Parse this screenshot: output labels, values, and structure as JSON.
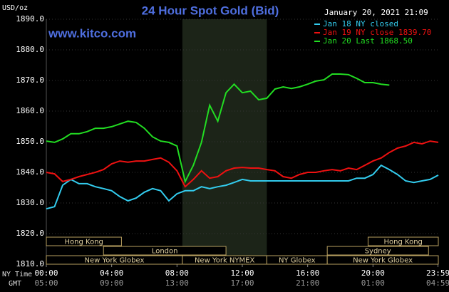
{
  "chart_data": {
    "type": "line",
    "title": "24 Hour Spot Gold (Bid)",
    "site": "www.kitco.com",
    "timestamp": "January 20, 2021 21:09",
    "y_label": "USD/oz",
    "x_label": "NY Time",
    "x2_label": "GMT",
    "x": [
      0,
      0.5,
      1,
      1.5,
      2,
      2.5,
      3,
      3.5,
      4,
      4.5,
      5,
      5.5,
      6,
      6.5,
      7,
      7.5,
      8,
      8.5,
      9,
      9.5,
      10,
      10.5,
      11,
      11.5,
      12,
      12.5,
      13,
      13.5,
      14,
      14.5,
      15,
      15.5,
      16,
      16.5,
      17,
      17.5,
      18,
      18.5,
      19,
      19.5,
      20,
      20.5,
      21,
      21.5,
      22,
      22.5,
      23,
      23.5,
      24
    ],
    "series": [
      {
        "name": "Jan 18 NY closed",
        "color": "#33ccee",
        "values": [
          1828.1,
          1828.8,
          1835.8,
          1837.7,
          1836.3,
          1836.3,
          1835.3,
          1834.7,
          1834,
          1832.1,
          1830.7,
          1831.6,
          1833.5,
          1834.7,
          1834,
          1830.7,
          1833,
          1834,
          1834,
          1835.3,
          1834.7,
          1835.3,
          1835.8,
          1836.7,
          1837.7,
          1837.2,
          1837.2,
          1837.2,
          1837.2,
          1837.2,
          1837.2,
          1837.2,
          1837.2,
          1837.2,
          1837.2,
          1837.2,
          1837.2,
          1837.2,
          1838.1,
          1838.1,
          1839.3,
          1842.3,
          1840.9,
          1839.3,
          1837.2,
          1836.7,
          1837.2,
          1837.7,
          1839.1
        ]
      },
      {
        "name": "Jan 19 NY close 1839.70",
        "color": "#ee1111",
        "values": [
          1840,
          1839.5,
          1837,
          1837.7,
          1838.6,
          1839.3,
          1840,
          1840.9,
          1842.8,
          1843.7,
          1843.3,
          1843.7,
          1843.7,
          1844.2,
          1844.7,
          1843.3,
          1840.5,
          1835.3,
          1837.7,
          1840.5,
          1838.1,
          1838.6,
          1840.5,
          1841.4,
          1841.6,
          1841.4,
          1841.4,
          1840.9,
          1840.5,
          1838.6,
          1838.1,
          1839.3,
          1840,
          1840,
          1840.5,
          1840.9,
          1840.5,
          1841.4,
          1840.9,
          1842.3,
          1843.7,
          1844.7,
          1846.5,
          1847.9,
          1848.6,
          1849.8,
          1849.3,
          1850.2,
          1849.8
        ]
      },
      {
        "name": "Jan 20 Last 1868.50",
        "color": "#22dd22",
        "values": [
          1850.2,
          1849.8,
          1850.9,
          1852.6,
          1852.6,
          1853.3,
          1854.4,
          1854.4,
          1854.9,
          1855.8,
          1856.7,
          1856.3,
          1854.4,
          1851.6,
          1850.2,
          1849.8,
          1848.6,
          1837,
          1842.3,
          1849.8,
          1861.9,
          1856.7,
          1866,
          1868.8,
          1866,
          1866.5,
          1863.7,
          1864.2,
          1867.2,
          1867.9,
          1867.4,
          1867.9,
          1868.8,
          1869.8,
          1870.2,
          1872.1,
          1872.1,
          1871.9,
          1870.7,
          1869.3,
          1869.3,
          1868.8,
          1868.5,
          null,
          null,
          null,
          null,
          null,
          null
        ]
      }
    ],
    "ylim": [
      1810,
      1890
    ],
    "yticks": [
      {
        "value": 1810,
        "label": "1810.0"
      },
      {
        "value": 1820,
        "label": "1820.0"
      },
      {
        "value": 1830,
        "label": "1830.0"
      },
      {
        "value": 1840,
        "label": "1840.0"
      },
      {
        "value": 1850,
        "label": "1850.0"
      },
      {
        "value": 1860,
        "label": "1860.0"
      },
      {
        "value": 1870,
        "label": "1870.0"
      },
      {
        "value": 1880,
        "label": "1880.0"
      },
      {
        "value": 1890,
        "label": "1890.0"
      }
    ],
    "xlim": [
      0,
      24
    ],
    "xticks": [
      {
        "value": 0,
        "label": "00:00"
      },
      {
        "value": 4,
        "label": "04:00"
      },
      {
        "value": 8,
        "label": "08:00"
      },
      {
        "value": 12,
        "label": "12:00"
      },
      {
        "value": 16,
        "label": "16:00"
      },
      {
        "value": 20,
        "label": "20:00"
      },
      {
        "value": 23.98,
        "label": "23:59"
      }
    ],
    "x2ticks": [
      "05:00",
      "09:00",
      "13:00",
      "17:00",
      "21:00",
      "01:00",
      "04:59"
    ],
    "shaded_range": [
      8.33,
      13.5
    ],
    "sessions": [
      [
        {
          "name": "Hong Kong",
          "start": 0,
          "end": 4.6
        },
        {
          "name": "Hong Kong",
          "start": 19.7,
          "end": 24
        }
      ],
      [
        {
          "name": "London",
          "start": 3.5,
          "end": 11
        },
        {
          "name": "Sydney",
          "start": 17.2,
          "end": 23.4
        }
      ],
      [
        {
          "name": "New York Globex",
          "start": 0,
          "end": 8.33
        },
        {
          "name": "New York NYMEX",
          "start": 8.33,
          "end": 13.5
        },
        {
          "name": "NY Globex",
          "start": 13.5,
          "end": 17.2
        },
        {
          "name": "New York Globex",
          "start": 17.2,
          "end": 24
        }
      ]
    ],
    "grid": true
  }
}
